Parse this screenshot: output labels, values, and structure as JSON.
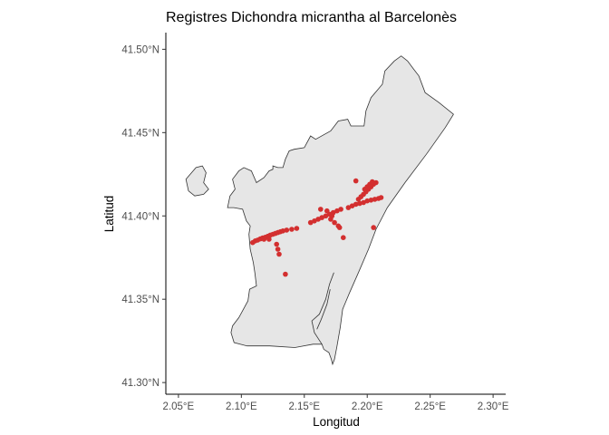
{
  "chart_data": {
    "type": "scatter",
    "title": "Registres Dichondra micrantha al Barcelonès",
    "xlabel": "Longitud",
    "ylabel": "Latitud",
    "xlim": [
      2.04,
      2.31
    ],
    "ylim": [
      41.293,
      41.51
    ],
    "x_ticks": [
      {
        "value": 2.05,
        "label": "2.05°E"
      },
      {
        "value": 2.1,
        "label": "2.10°E"
      },
      {
        "value": 2.15,
        "label": "2.15°E"
      },
      {
        "value": 2.2,
        "label": "2.20°E"
      },
      {
        "value": 2.25,
        "label": "2.25°E"
      },
      {
        "value": 2.3,
        "label": "2.30°E"
      }
    ],
    "y_ticks": [
      {
        "value": 41.3,
        "label": "41.30°N"
      },
      {
        "value": 41.35,
        "label": "41.35°N"
      },
      {
        "value": 41.4,
        "label": "41.40°N"
      },
      {
        "value": 41.45,
        "label": "41.45°N"
      },
      {
        "value": 41.5,
        "label": "41.50°N"
      }
    ],
    "grid": false,
    "legend": "none",
    "colors": {
      "region_fill": "#e6e6e6",
      "region_stroke": "#333333",
      "points": "#d32f2f"
    },
    "region_outline": [
      [
        2.1095,
        41.372
      ],
      [
        2.1107,
        41.366
      ],
      [
        2.112,
        41.358
      ],
      [
        2.1065,
        41.356
      ],
      [
        2.1052,
        41.349
      ],
      [
        2.098,
        41.339
      ],
      [
        2.093,
        41.334
      ],
      [
        2.0918,
        41.33
      ],
      [
        2.0942,
        41.324
      ],
      [
        2.1045,
        41.322
      ],
      [
        2.1225,
        41.322
      ],
      [
        2.1425,
        41.321
      ],
      [
        2.157,
        41.323
      ],
      [
        2.164,
        41.323
      ],
      [
        2.1655,
        41.32
      ],
      [
        2.1695,
        41.318
      ],
      [
        2.1715,
        41.314
      ],
      [
        2.1725,
        41.311
      ],
      [
        2.174,
        41.314
      ],
      [
        2.176,
        41.322
      ],
      [
        2.1785,
        41.333
      ],
      [
        2.1805,
        41.344
      ],
      [
        2.186,
        41.354
      ],
      [
        2.193,
        41.366
      ],
      [
        2.201,
        41.38
      ],
      [
        2.207,
        41.392
      ],
      [
        2.216,
        41.405
      ],
      [
        2.23,
        41.42
      ],
      [
        2.247,
        41.437
      ],
      [
        2.262,
        41.453
      ],
      [
        2.2685,
        41.461
      ],
      [
        2.257,
        41.468
      ],
      [
        2.246,
        41.474
      ],
      [
        2.241,
        41.484
      ],
      [
        2.237,
        41.488
      ],
      [
        2.232,
        41.493
      ],
      [
        2.227,
        41.496
      ],
      [
        2.2215,
        41.493
      ],
      [
        2.214,
        41.487
      ],
      [
        2.212,
        41.479
      ],
      [
        2.203,
        41.471
      ],
      [
        2.199,
        41.463
      ],
      [
        2.1975,
        41.454
      ],
      [
        2.187,
        41.454
      ],
      [
        2.1845,
        41.458
      ],
      [
        2.177,
        41.457
      ],
      [
        2.171,
        41.451
      ],
      [
        2.159,
        41.446
      ],
      [
        2.155,
        41.448
      ],
      [
        2.15,
        41.441
      ],
      [
        2.142,
        41.44
      ],
      [
        2.138,
        41.439
      ],
      [
        2.135,
        41.434
      ],
      [
        2.133,
        41.429
      ],
      [
        2.129,
        41.429
      ],
      [
        2.125,
        41.43
      ],
      [
        2.125,
        41.428
      ],
      [
        2.122,
        41.427
      ],
      [
        2.118,
        41.423
      ],
      [
        2.112,
        41.42
      ],
      [
        2.108,
        41.427
      ],
      [
        2.102,
        41.429
      ],
      [
        2.098,
        41.427
      ],
      [
        2.093,
        41.422
      ],
      [
        2.095,
        41.416
      ],
      [
        2.091,
        41.412
      ],
      [
        2.089,
        41.405
      ],
      [
        2.094,
        41.405
      ],
      [
        2.101,
        41.404
      ],
      [
        2.104,
        41.397
      ],
      [
        2.107,
        41.394
      ],
      [
        2.106,
        41.389
      ],
      [
        2.107,
        41.38
      ]
    ],
    "port_lines": [
      [
        [
          2.164,
          41.323
        ],
        [
          2.158,
          41.33
        ],
        [
          2.156,
          41.337
        ],
        [
          2.162,
          41.341
        ],
        [
          2.167,
          41.35
        ],
        [
          2.17,
          41.359
        ],
        [
          2.1735,
          41.366
        ]
      ],
      [
        [
          2.16,
          41.332
        ],
        [
          2.1635,
          41.338
        ],
        [
          2.168,
          41.347
        ],
        [
          2.1705,
          41.356
        ]
      ]
    ],
    "islet_outline": [
      [
        2.056,
        41.422
      ],
      [
        2.064,
        41.429
      ],
      [
        2.069,
        41.43
      ],
      [
        2.072,
        41.426
      ],
      [
        2.07,
        41.42
      ],
      [
        2.074,
        41.416
      ],
      [
        2.07,
        41.413
      ],
      [
        2.063,
        41.412
      ],
      [
        2.058,
        41.415
      ]
    ],
    "points": [
      {
        "x": 2.109,
        "y": 41.384
      },
      {
        "x": 2.111,
        "y": 41.385
      },
      {
        "x": 2.113,
        "y": 41.3855
      },
      {
        "x": 2.115,
        "y": 41.3862
      },
      {
        "x": 2.117,
        "y": 41.3868
      },
      {
        "x": 2.119,
        "y": 41.3872
      },
      {
        "x": 2.121,
        "y": 41.3878
      },
      {
        "x": 2.123,
        "y": 41.3885
      },
      {
        "x": 2.125,
        "y": 41.389
      },
      {
        "x": 2.127,
        "y": 41.3895
      },
      {
        "x": 2.129,
        "y": 41.39
      },
      {
        "x": 2.131,
        "y": 41.3905
      },
      {
        "x": 2.133,
        "y": 41.391
      },
      {
        "x": 2.136,
        "y": 41.3915
      },
      {
        "x": 2.14,
        "y": 41.392
      },
      {
        "x": 2.144,
        "y": 41.3925
      },
      {
        "x": 2.128,
        "y": 41.383
      },
      {
        "x": 2.129,
        "y": 41.38
      },
      {
        "x": 2.13,
        "y": 41.377
      },
      {
        "x": 2.135,
        "y": 41.365
      },
      {
        "x": 2.118,
        "y": 41.386
      },
      {
        "x": 2.122,
        "y": 41.386
      },
      {
        "x": 2.155,
        "y": 41.396
      },
      {
        "x": 2.158,
        "y": 41.397
      },
      {
        "x": 2.161,
        "y": 41.398
      },
      {
        "x": 2.164,
        "y": 41.399
      },
      {
        "x": 2.167,
        "y": 41.4
      },
      {
        "x": 2.17,
        "y": 41.401
      },
      {
        "x": 2.173,
        "y": 41.402
      },
      {
        "x": 2.176,
        "y": 41.403
      },
      {
        "x": 2.179,
        "y": 41.404
      },
      {
        "x": 2.163,
        "y": 41.404
      },
      {
        "x": 2.168,
        "y": 41.403
      },
      {
        "x": 2.172,
        "y": 41.4
      },
      {
        "x": 2.174,
        "y": 41.396
      },
      {
        "x": 2.177,
        "y": 41.394
      },
      {
        "x": 2.178,
        "y": 41.393
      },
      {
        "x": 2.181,
        "y": 41.387
      },
      {
        "x": 2.171,
        "y": 41.398
      },
      {
        "x": 2.185,
        "y": 41.405
      },
      {
        "x": 2.188,
        "y": 41.406
      },
      {
        "x": 2.191,
        "y": 41.407
      },
      {
        "x": 2.194,
        "y": 41.4075
      },
      {
        "x": 2.197,
        "y": 41.408
      },
      {
        "x": 2.2,
        "y": 41.409
      },
      {
        "x": 2.203,
        "y": 41.4095
      },
      {
        "x": 2.206,
        "y": 41.41
      },
      {
        "x": 2.209,
        "y": 41.4105
      },
      {
        "x": 2.211,
        "y": 41.411
      },
      {
        "x": 2.193,
        "y": 41.41
      },
      {
        "x": 2.195,
        "y": 41.4115
      },
      {
        "x": 2.197,
        "y": 41.413
      },
      {
        "x": 2.199,
        "y": 41.4145
      },
      {
        "x": 2.201,
        "y": 41.416
      },
      {
        "x": 2.203,
        "y": 41.4175
      },
      {
        "x": 2.205,
        "y": 41.419
      },
      {
        "x": 2.207,
        "y": 41.42
      },
      {
        "x": 2.198,
        "y": 41.416
      },
      {
        "x": 2.2,
        "y": 41.4175
      },
      {
        "x": 2.202,
        "y": 41.419
      },
      {
        "x": 2.204,
        "y": 41.4205
      },
      {
        "x": 2.191,
        "y": 41.421
      },
      {
        "x": 2.205,
        "y": 41.393
      }
    ]
  }
}
